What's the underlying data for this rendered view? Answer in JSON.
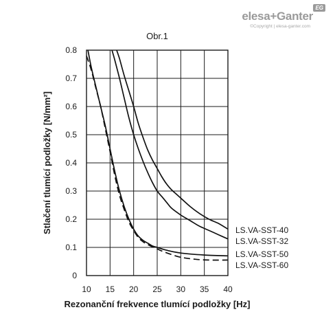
{
  "brand": {
    "logo_text": "elesa+Ganter",
    "badge": "EG",
    "copyright": "©Copyright | elesa-ganter.com"
  },
  "chart_data": {
    "type": "line",
    "title": "Obr.1",
    "xlabel": "Rezonanční frekvence tlumící podložky [Hz]",
    "ylabel": "Stlačení tlumící podložky [N/mm²]",
    "xlim": [
      10,
      40
    ],
    "ylim": [
      0,
      0.8
    ],
    "x_ticks": [
      10,
      15,
      20,
      25,
      30,
      35,
      40
    ],
    "y_ticks": [
      "0",
      "0.1",
      "0.2",
      "0.3",
      "0.4",
      "0.5",
      "0.6",
      "0.7",
      "0.8"
    ],
    "grid": true,
    "series": [
      {
        "name": "LS.VA-SST-40",
        "style": "solid",
        "points": [
          [
            16.4,
            0.8
          ],
          [
            17,
            0.77
          ],
          [
            18,
            0.71
          ],
          [
            19,
            0.655
          ],
          [
            20,
            0.6
          ],
          [
            21,
            0.54
          ],
          [
            22,
            0.49
          ],
          [
            23,
            0.445
          ],
          [
            24,
            0.41
          ],
          [
            25,
            0.38
          ],
          [
            26,
            0.35
          ],
          [
            27,
            0.325
          ],
          [
            28,
            0.305
          ],
          [
            29,
            0.29
          ],
          [
            30,
            0.275
          ],
          [
            32,
            0.245
          ],
          [
            34,
            0.22
          ],
          [
            36,
            0.2
          ],
          [
            38,
            0.185
          ],
          [
            40,
            0.165
          ]
        ]
      },
      {
        "name": "LS.VA-SST-32",
        "style": "solid",
        "points": [
          [
            15.4,
            0.8
          ],
          [
            16,
            0.765
          ],
          [
            17,
            0.7
          ],
          [
            18,
            0.63
          ],
          [
            19,
            0.56
          ],
          [
            20,
            0.5
          ],
          [
            21,
            0.45
          ],
          [
            22,
            0.405
          ],
          [
            23,
            0.365
          ],
          [
            24,
            0.33
          ],
          [
            25,
            0.3
          ],
          [
            26,
            0.28
          ],
          [
            27,
            0.26
          ],
          [
            28,
            0.24
          ],
          [
            30,
            0.215
          ],
          [
            32,
            0.195
          ],
          [
            34,
            0.175
          ],
          [
            36,
            0.16
          ],
          [
            38,
            0.145
          ],
          [
            40,
            0.13
          ]
        ]
      },
      {
        "name": "LS.VA-SST-50",
        "style": "solid",
        "points": [
          [
            10.3,
            0.8
          ],
          [
            11,
            0.74
          ],
          [
            12,
            0.67
          ],
          [
            13,
            0.6
          ],
          [
            14,
            0.53
          ],
          [
            15,
            0.45
          ],
          [
            16,
            0.37
          ],
          [
            17,
            0.3
          ],
          [
            18,
            0.245
          ],
          [
            19,
            0.2
          ],
          [
            20,
            0.165
          ],
          [
            21,
            0.14
          ],
          [
            22,
            0.125
          ],
          [
            23,
            0.115
          ],
          [
            24,
            0.105
          ],
          [
            25,
            0.1
          ],
          [
            27,
            0.09
          ],
          [
            30,
            0.08
          ],
          [
            35,
            0.073
          ],
          [
            40,
            0.07
          ]
        ]
      },
      {
        "name": "LS.VA-SST-60",
        "style": "dashed",
        "points": [
          [
            10,
            0.78
          ],
          [
            11,
            0.73
          ],
          [
            12,
            0.665
          ],
          [
            13,
            0.6
          ],
          [
            14,
            0.52
          ],
          [
            15,
            0.44
          ],
          [
            16,
            0.355
          ],
          [
            17,
            0.285
          ],
          [
            18,
            0.235
          ],
          [
            19,
            0.19
          ],
          [
            20,
            0.16
          ],
          [
            21,
            0.135
          ],
          [
            22,
            0.12
          ],
          [
            23,
            0.11
          ],
          [
            24,
            0.102
          ],
          [
            25,
            0.095
          ],
          [
            26,
            0.087
          ],
          [
            28,
            0.075
          ],
          [
            30,
            0.065
          ],
          [
            33,
            0.058
          ],
          [
            36,
            0.055
          ],
          [
            40,
            0.055
          ]
        ]
      }
    ]
  }
}
